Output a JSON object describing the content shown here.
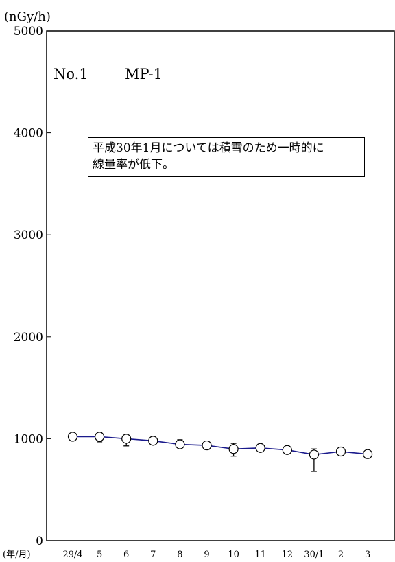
{
  "chart_data": {
    "type": "line",
    "unit_label": "(nGy/h)",
    "x_axis_label": "(年/月)",
    "categories": [
      "29/4",
      "5",
      "6",
      "7",
      "8",
      "9",
      "10",
      "11",
      "12",
      "30/1",
      "2",
      "3"
    ],
    "series": [
      {
        "values": [
          1020,
          1020,
          1000,
          980,
          945,
          935,
          900,
          910,
          890,
          845,
          875,
          850
        ],
        "err_upper": [
          1040,
          1060,
          1030,
          1010,
          990,
          965,
          955,
          925,
          905,
          900,
          890,
          880
        ],
        "err_lower": [
          980,
          970,
          930,
          940,
          910,
          895,
          830,
          900,
          880,
          680,
          840,
          810
        ]
      }
    ],
    "ylim": [
      0,
      5000
    ],
    "yticks": [
      "0",
      "1000",
      "2000",
      "3000",
      "4000",
      "5000"
    ],
    "grid": false,
    "line_color": "#1a1a8c",
    "marker": "open-circle"
  },
  "labels": {
    "station_no": "No.1",
    "station_name": "MP-1",
    "note_line1": "平成30年1月については積雪のため一時的に",
    "note_line2": "線量率が低下。"
  }
}
